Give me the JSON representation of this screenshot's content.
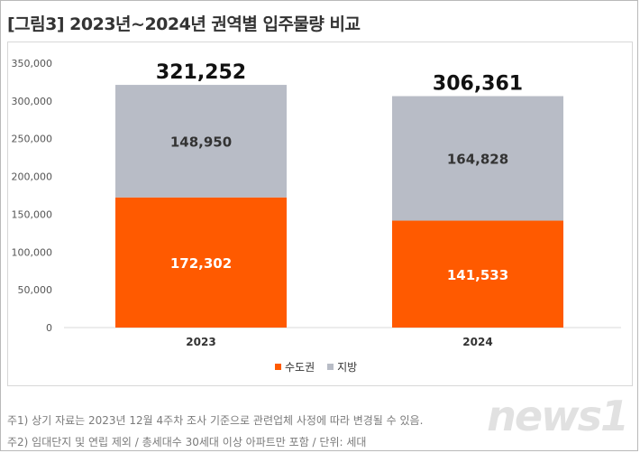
{
  "title": "[그림3]  2023년~2024년 권역별 입주물량 비교",
  "colors": {
    "capital": "#ff5a00",
    "regional": "#b8bcc6",
    "axis_text": "#555555"
  },
  "chart_data": {
    "type": "bar",
    "stacked": true,
    "categories": [
      "2023",
      "2024"
    ],
    "series": [
      {
        "name": "수도권",
        "values": [
          172302,
          141533
        ],
        "labels": [
          "172,302",
          "141,533"
        ]
      },
      {
        "name": "지방",
        "values": [
          148950,
          164828
        ],
        "labels": [
          "148,950",
          "164,828"
        ]
      }
    ],
    "totals": [
      321252,
      306361
    ],
    "total_labels": [
      "321,252",
      "306,361"
    ],
    "ylim": [
      0,
      350000
    ],
    "yticks": [
      0,
      50000,
      100000,
      150000,
      200000,
      250000,
      300000,
      350000
    ],
    "ytick_labels": [
      "0",
      "50,000",
      "100,000",
      "150,000",
      "200,000",
      "250,000",
      "300,000",
      "350,000"
    ],
    "grid": false,
    "legend_position": "bottom"
  },
  "legend": {
    "capital": "수도권",
    "regional": "지방"
  },
  "notes": [
    "주1) 상기 자료는 2023년 12월 4주차 조사 기준으로 관련업체 사정에 따라 변경될 수 있음.",
    "주2) 임대단지 및 연립 제외 / 총세대수 30세대 이상 아파트만 포함 / 단위: 세대"
  ],
  "watermark": "news1"
}
